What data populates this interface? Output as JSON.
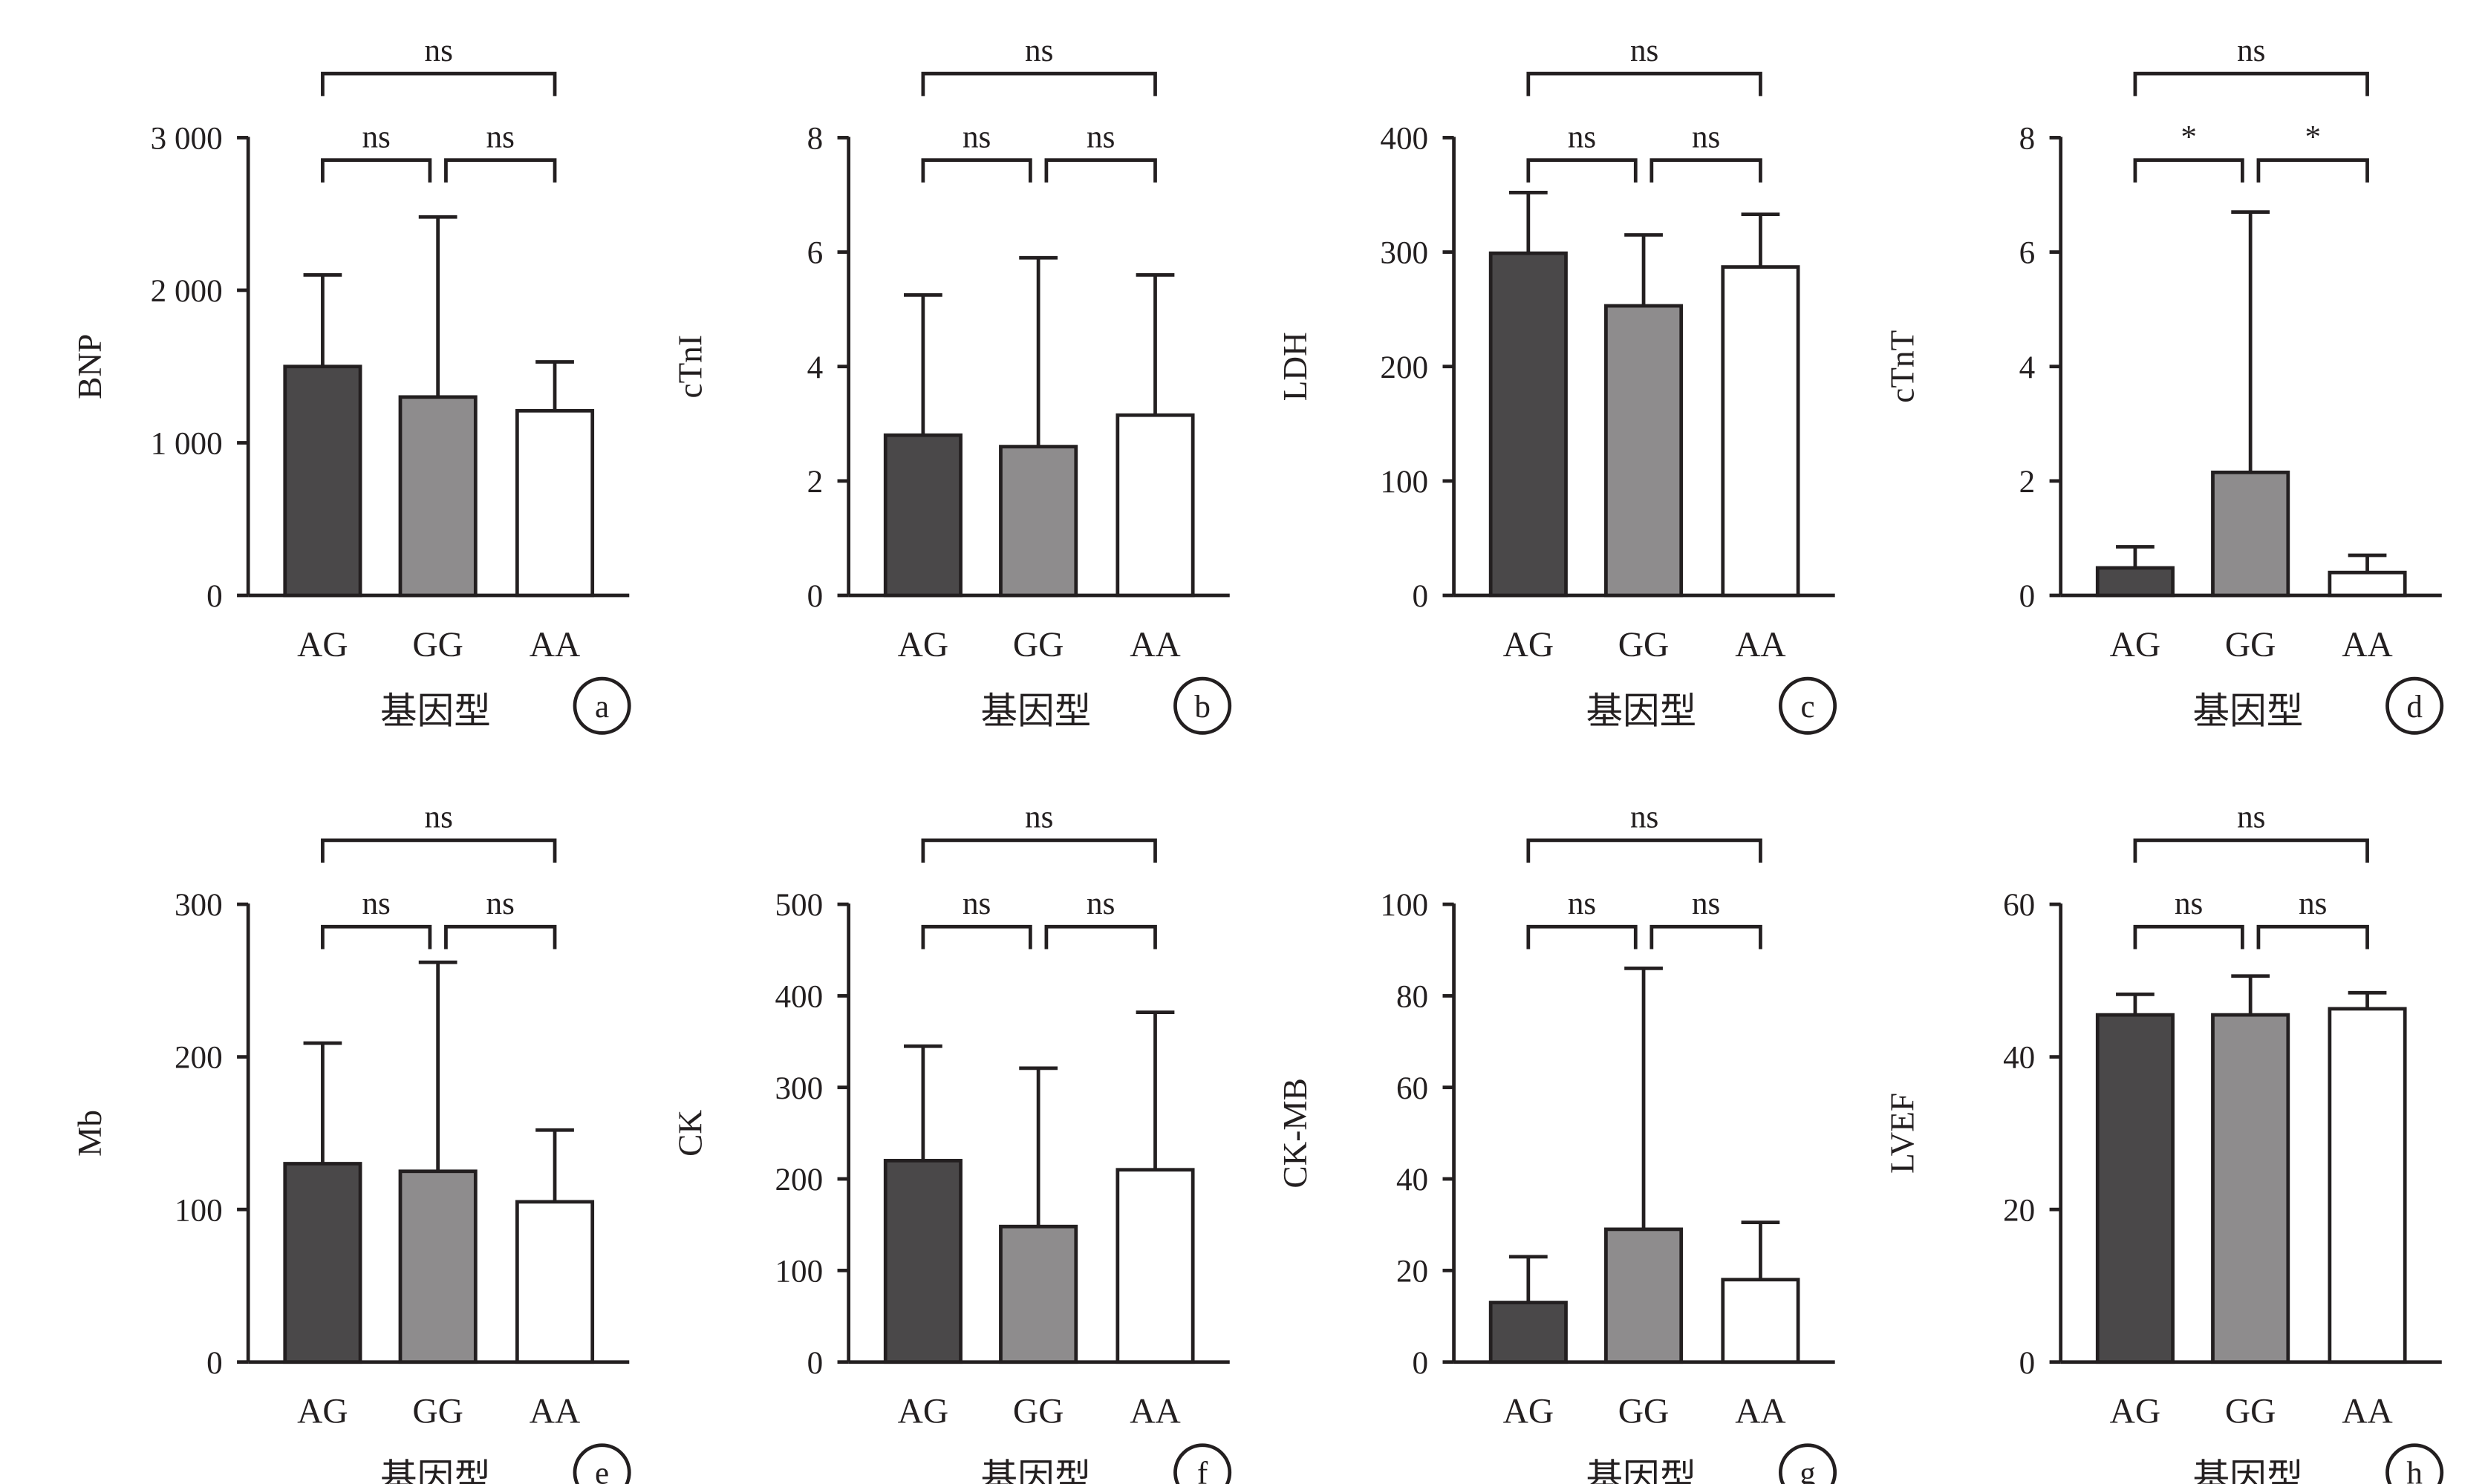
{
  "colors": {
    "AG": "#4a4849",
    "GG": "#8e8c8d",
    "AA": "#ffffff",
    "ink": "#231f20"
  },
  "xlabel": "基因型",
  "chart_data": [
    {
      "type": "bar",
      "panel": "a",
      "ylabel": "BNP",
      "ylim": [
        0,
        3000
      ],
      "yticks": [
        0,
        1000,
        2000,
        3000
      ],
      "ytick_labels": [
        "0",
        "1 000",
        "2 000",
        "3 000"
      ],
      "categories": [
        "AG",
        "GG",
        "AA"
      ],
      "values": [
        1500,
        1300,
        1210
      ],
      "errors": [
        600,
        1180,
        320
      ],
      "sig": {
        "left": "ns",
        "right": "ns",
        "top": "ns"
      }
    },
    {
      "type": "bar",
      "panel": "b",
      "ylabel": "cTnI",
      "ylim": [
        0,
        8
      ],
      "yticks": [
        0,
        2,
        4,
        6,
        8
      ],
      "ytick_labels": [
        "0",
        "2",
        "4",
        "6",
        "8"
      ],
      "categories": [
        "AG",
        "GG",
        "AA"
      ],
      "values": [
        2.8,
        2.6,
        3.15
      ],
      "errors": [
        2.45,
        3.3,
        2.45
      ],
      "sig": {
        "left": "ns",
        "right": "ns",
        "top": "ns"
      }
    },
    {
      "type": "bar",
      "panel": "c",
      "ylabel": "LDH",
      "ylim": [
        0,
        400
      ],
      "yticks": [
        0,
        100,
        200,
        300,
        400
      ],
      "ytick_labels": [
        "0",
        "100",
        "200",
        "300",
        "400"
      ],
      "categories": [
        "AG",
        "GG",
        "AA"
      ],
      "values": [
        299,
        253,
        287
      ],
      "errors": [
        53,
        62,
        46
      ],
      "sig": {
        "left": "ns",
        "right": "ns",
        "top": "ns"
      }
    },
    {
      "type": "bar",
      "panel": "d",
      "ylabel": "cTnT",
      "ylim": [
        0,
        8
      ],
      "yticks": [
        0,
        2,
        4,
        6,
        8
      ],
      "ytick_labels": [
        "0",
        "2",
        "4",
        "6",
        "8"
      ],
      "categories": [
        "AG",
        "GG",
        "AA"
      ],
      "values": [
        0.48,
        2.15,
        0.4
      ],
      "errors": [
        0.37,
        4.55,
        0.3
      ],
      "sig": {
        "left": "*",
        "right": "*",
        "top": "ns"
      }
    },
    {
      "type": "bar",
      "panel": "e",
      "ylabel": "Mb",
      "ylim": [
        0,
        300
      ],
      "yticks": [
        0,
        100,
        200,
        300
      ],
      "ytick_labels": [
        "0",
        "100",
        "200",
        "300"
      ],
      "categories": [
        "AG",
        "GG",
        "AA"
      ],
      "values": [
        130,
        125,
        105
      ],
      "errors": [
        79,
        137,
        47
      ],
      "sig": {
        "left": "ns",
        "right": "ns",
        "top": "ns"
      }
    },
    {
      "type": "bar",
      "panel": "f",
      "ylabel": "CK",
      "ylim": [
        0,
        500
      ],
      "yticks": [
        0,
        100,
        200,
        300,
        400,
        500
      ],
      "ytick_labels": [
        "0",
        "100",
        "200",
        "300",
        "400",
        "500"
      ],
      "categories": [
        "AG",
        "GG",
        "AA"
      ],
      "values": [
        220,
        148,
        210
      ],
      "errors": [
        125,
        173,
        172
      ],
      "sig": {
        "left": "ns",
        "right": "ns",
        "top": "ns"
      }
    },
    {
      "type": "bar",
      "panel": "g",
      "ylabel": "CK-MB",
      "ylim": [
        0,
        100
      ],
      "yticks": [
        0,
        20,
        40,
        60,
        80,
        100
      ],
      "ytick_labels": [
        "0",
        "20",
        "40",
        "60",
        "80",
        "100"
      ],
      "categories": [
        "AG",
        "GG",
        "AA"
      ],
      "values": [
        13,
        29,
        18
      ],
      "errors": [
        10,
        57,
        12.5
      ],
      "sig": {
        "left": "ns",
        "right": "ns",
        "top": "ns"
      }
    },
    {
      "type": "bar",
      "panel": "h",
      "ylabel": "LVEF",
      "ylim": [
        0,
        60
      ],
      "yticks": [
        0,
        20,
        40,
        60
      ],
      "ytick_labels": [
        "0",
        "20",
        "40",
        "60"
      ],
      "categories": [
        "AG",
        "GG",
        "AA"
      ],
      "values": [
        45.5,
        45.5,
        46.3
      ],
      "errors": [
        2.7,
        5.1,
        2.1
      ],
      "sig": {
        "left": "ns",
        "right": "ns",
        "top": "ns"
      }
    }
  ]
}
